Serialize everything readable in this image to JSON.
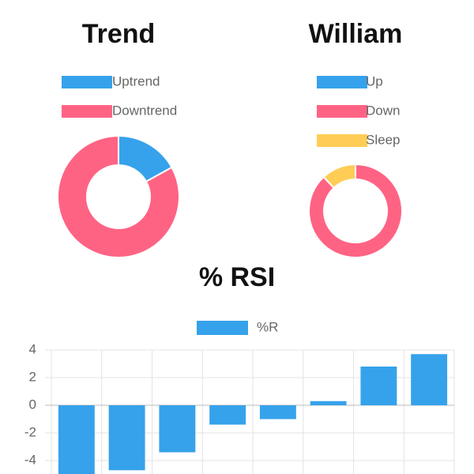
{
  "chart_data": [
    {
      "type": "doughnut",
      "title": "Trend",
      "categories": [
        "Uptrend",
        "Downtrend"
      ],
      "values": [
        17,
        83
      ],
      "colors": [
        "#36a2eb",
        "#ff6384"
      ]
    },
    {
      "type": "doughnut",
      "title": "William",
      "categories": [
        "Up",
        "Down",
        "Sleep"
      ],
      "values": [
        0,
        88,
        12
      ],
      "colors": [
        "#36a2eb",
        "#ff6384",
        "#ffcd56"
      ]
    },
    {
      "type": "bar",
      "title": "% RSI",
      "categories": [
        null,
        null,
        null,
        null,
        null,
        null,
        null,
        null
      ],
      "series": [
        {
          "name": "%R",
          "color": "#36a2eb",
          "values": [
            -5.2,
            -4.7,
            -3.4,
            -1.4,
            -1.0,
            0.3,
            2.8,
            3.7
          ]
        }
      ],
      "ylim": [
        -5,
        4
      ],
      "yticks": [
        -4,
        -2,
        0,
        2,
        4
      ],
      "grid": true
    }
  ]
}
